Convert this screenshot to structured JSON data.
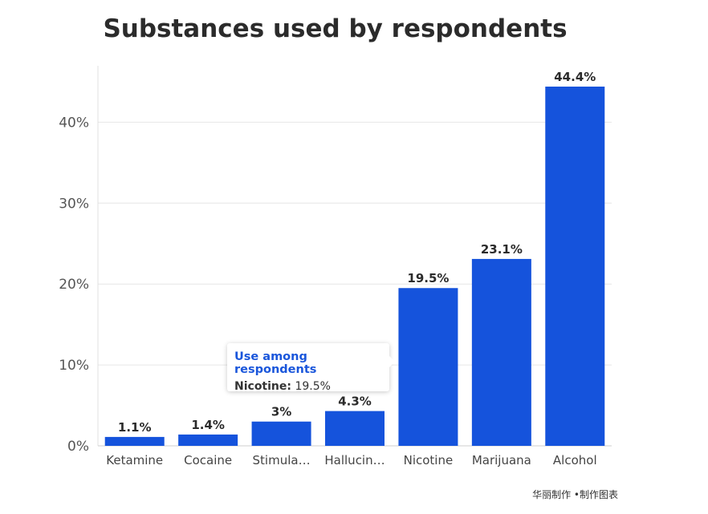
{
  "chart_data": {
    "type": "bar",
    "title": "Substances used by respondents",
    "categories": [
      "Ketamine",
      "Cocaine",
      "Stimula…",
      "Hallucin…",
      "Nicotine",
      "Marijuana",
      "Alcohol"
    ],
    "values": [
      1.1,
      1.4,
      3,
      4.3,
      19.5,
      23.1,
      44.4
    ],
    "value_labels": [
      "1.1%",
      "1.4%",
      "3%",
      "4.3%",
      "19.5%",
      "23.1%",
      "44.4%"
    ],
    "y_ticks": [
      {
        "value": 0,
        "label": "0%"
      },
      {
        "value": 10,
        "label": "10%"
      },
      {
        "value": 20,
        "label": "20%"
      },
      {
        "value": 30,
        "label": "30%"
      },
      {
        "value": 40,
        "label": "40%"
      }
    ],
    "ylim": [
      0,
      47
    ],
    "grid": true,
    "bar_color": "#1553dc"
  },
  "tooltip": {
    "title": "Use among respondents",
    "label": "Nicotine:",
    "value": "19.5%"
  },
  "footer": "华丽制作 •制作图表"
}
